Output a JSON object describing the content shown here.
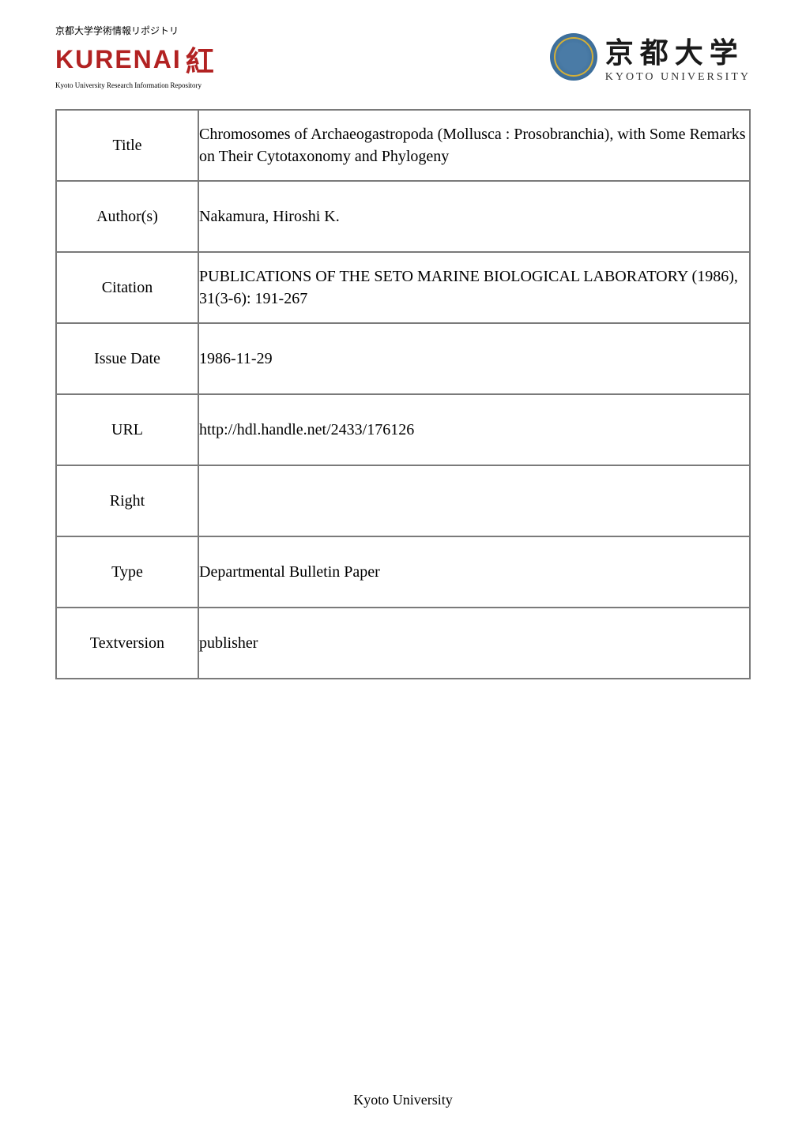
{
  "header": {
    "logo_left": {
      "jp_text": "京都大学学術情報リポジトリ",
      "main_text": "KURENAI",
      "icon_text": "紅",
      "sub_text": "Kyoto University Research Information Repository"
    },
    "logo_right": {
      "kanji": "京都大学",
      "en": "KYOTO UNIVERSITY"
    }
  },
  "metadata": {
    "rows": [
      {
        "label": "Title",
        "value": "Chromosomes of Archaeogastropoda (Mollusca : Prosobranchia), with Some Remarks on Their Cytotaxonomy and Phylogeny"
      },
      {
        "label": "Author(s)",
        "value": "Nakamura, Hiroshi K."
      },
      {
        "label": "Citation",
        "value": "PUBLICATIONS OF THE SETO MARINE BIOLOGICAL LABORATORY (1986), 31(3-6): 191-267"
      },
      {
        "label": "Issue Date",
        "value": "1986-11-29"
      },
      {
        "label": "URL",
        "value": "http://hdl.handle.net/2433/176126"
      },
      {
        "label": "Right",
        "value": ""
      },
      {
        "label": "Type",
        "value": "Departmental Bulletin Paper"
      },
      {
        "label": "Textversion",
        "value": "publisher"
      }
    ]
  },
  "footer": {
    "text": "Kyoto University"
  },
  "colors": {
    "border": "#7a7a7a",
    "kurenai_red": "#b22222",
    "text": "#000000",
    "background": "#ffffff"
  }
}
